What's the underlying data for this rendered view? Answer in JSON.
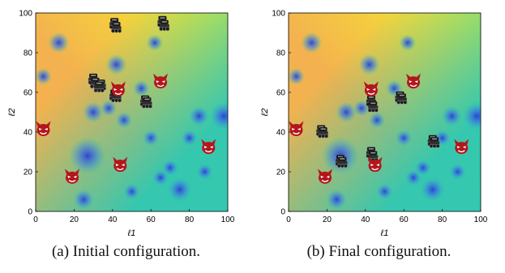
{
  "chart_data": [
    {
      "type": "scatter",
      "xlabel": "ℓ1",
      "ylabel": "ℓ2",
      "xlim": [
        0,
        100
      ],
      "ylim": [
        0,
        100
      ],
      "xticks": [
        "0",
        "20",
        "40",
        "60",
        "80",
        "100"
      ],
      "yticks": [
        "0",
        "20",
        "40",
        "60",
        "80",
        "100"
      ],
      "background": "heatmap",
      "caption": "(a) Initial configuration.",
      "series": [
        {
          "marker": "robot",
          "points": [
            [
              41,
              95
            ],
            [
              42,
              93
            ],
            [
              66,
              96
            ],
            [
              67,
              94
            ],
            [
              30,
              67
            ],
            [
              31,
              65
            ],
            [
              34,
              64
            ],
            [
              33,
              63
            ],
            [
              41,
              59
            ],
            [
              42,
              58
            ],
            [
              57,
              56
            ],
            [
              58,
              55
            ]
          ]
        },
        {
          "marker": "devil",
          "points": [
            [
              4,
              41
            ],
            [
              19,
              17
            ],
            [
              43,
              61
            ],
            [
              65,
              65
            ],
            [
              44,
              23
            ],
            [
              90,
              32
            ]
          ]
        }
      ]
    },
    {
      "type": "scatter",
      "xlabel": "ℓ1",
      "ylabel": "ℓ2",
      "xlim": [
        0,
        100
      ],
      "ylim": [
        0,
        100
      ],
      "xticks": [
        "0",
        "20",
        "40",
        "60",
        "80",
        "100"
      ],
      "yticks": [
        "0",
        "20",
        "40",
        "60",
        "80",
        "100"
      ],
      "background": "heatmap",
      "caption": "(b) Final configuration.",
      "series": [
        {
          "marker": "robot",
          "points": [
            [
              17,
              41
            ],
            [
              18,
              40
            ],
            [
              43,
              56
            ],
            [
              44,
              53
            ],
            [
              58,
              58
            ],
            [
              59,
              57
            ],
            [
              75,
              36
            ],
            [
              76,
              35
            ],
            [
              43,
              30
            ],
            [
              44,
              28
            ],
            [
              27,
              26
            ],
            [
              28,
              25
            ]
          ]
        },
        {
          "marker": "devil",
          "points": [
            [
              4,
              41
            ],
            [
              19,
              17
            ],
            [
              43,
              61
            ],
            [
              65,
              65
            ],
            [
              45,
              23
            ],
            [
              90,
              32
            ]
          ]
        }
      ]
    }
  ],
  "colors": {
    "field_high": "#f6ef2a",
    "field_mid": "#f3b24f",
    "field_low": "#2bc8b4",
    "well": "#2a3fd4",
    "devil": "#b3161b",
    "robot": "#1a1a1a"
  }
}
